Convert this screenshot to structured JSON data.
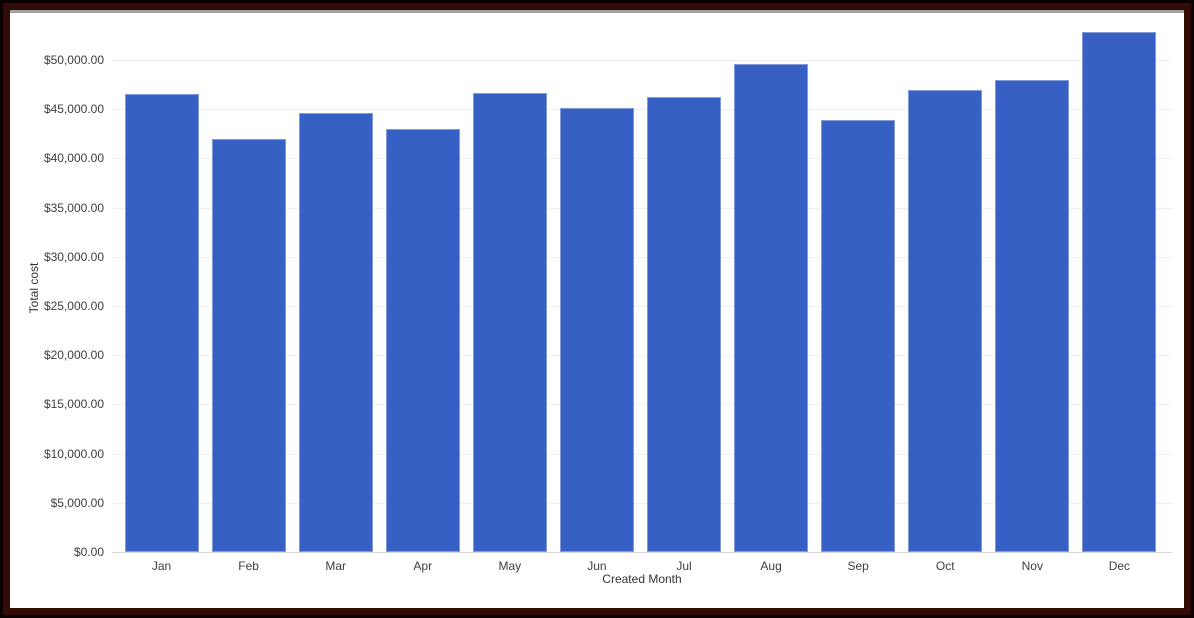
{
  "frame": {
    "outer_border_color": "#0b0101",
    "inner_border_color": "#330b06",
    "hairline_color": "#a2a2a2",
    "background_color": "#ffffff"
  },
  "chart_data": {
    "type": "bar",
    "title": "",
    "xlabel": "Created Month",
    "ylabel": "Total cost",
    "categories": [
      "Jan",
      "Feb",
      "Mar",
      "Apr",
      "May",
      "Jun",
      "Jul",
      "Aug",
      "Sep",
      "Oct",
      "Nov",
      "Dec"
    ],
    "values": [
      46500,
      42000,
      44650,
      43000,
      46650,
      45100,
      46250,
      49600,
      43900,
      47000,
      48000,
      52800
    ],
    "ylim": [
      0,
      50000
    ],
    "ytick_step": 5000,
    "ytick_labels": [
      "$0.00",
      "$5,000.00",
      "$10,000.00",
      "$15,000.00",
      "$20,000.00",
      "$25,000.00",
      "$30,000.00",
      "$35,000.00",
      "$40,000.00",
      "$45,000.00",
      "$50,000.00"
    ],
    "grid": true,
    "legend": "none",
    "bar_color": "#3660c4",
    "bar_stroke_color": "#8299da",
    "gridline_color": "#efefef",
    "baseline_color": "#d6d6d6",
    "label_color": "#3d3d3d",
    "axis_title_color": "#333333"
  }
}
